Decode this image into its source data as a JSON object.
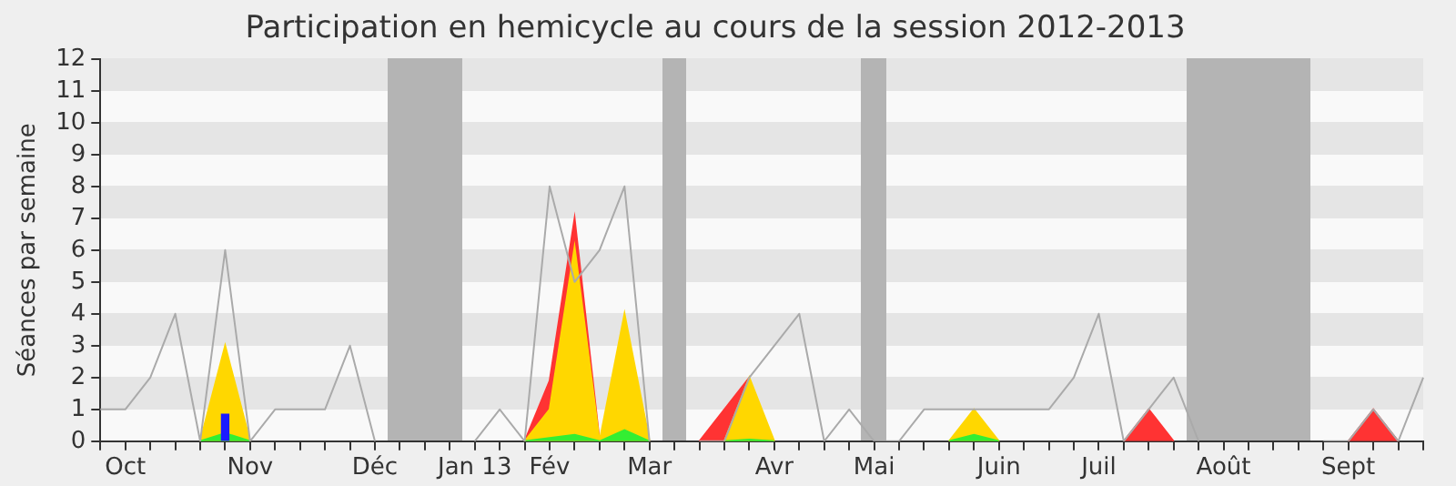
{
  "chart_data": {
    "type": "area",
    "title": "Participation en hemicycle au cours de la session 2012-2013",
    "ylabel": "Séances par semaine",
    "stacked": true,
    "categories": [
      null,
      "Oct",
      null,
      null,
      null,
      null,
      "Nov",
      null,
      null,
      null,
      null,
      "Déc",
      null,
      null,
      null,
      "Jan 13",
      null,
      null,
      "Fév",
      null,
      null,
      null,
      "Mar",
      null,
      null,
      null,
      null,
      "Avr",
      null,
      null,
      null,
      "Mai",
      null,
      null,
      null,
      null,
      "Juin",
      null,
      null,
      null,
      "Juil",
      null,
      null,
      null,
      null,
      "Août",
      null,
      null,
      null,
      null,
      "Sept",
      null,
      null,
      null
    ],
    "series": [
      {
        "color": "#33ee33",
        "values": [
          null,
          null,
          null,
          null,
          0,
          0.25,
          0,
          null,
          null,
          null,
          null,
          null,
          null,
          null,
          null,
          null,
          null,
          0,
          0.1,
          0.2,
          0,
          0.35,
          0,
          null,
          null,
          0,
          0.05,
          0,
          null,
          null,
          null,
          null,
          null,
          null,
          0,
          0.2,
          0,
          null,
          null,
          null,
          null,
          null,
          null,
          null,
          null,
          null,
          null,
          null,
          null,
          null,
          null,
          null,
          null,
          null
        ]
      },
      {
        "color": "#ffd700",
        "values": [
          null,
          null,
          null,
          null,
          0,
          2.75,
          0,
          null,
          null,
          null,
          null,
          null,
          null,
          null,
          null,
          null,
          null,
          0,
          0.9,
          5.9,
          0,
          3.65,
          0,
          null,
          null,
          0,
          1.95,
          0,
          null,
          null,
          null,
          null,
          null,
          null,
          0,
          0.8,
          0,
          null,
          null,
          null,
          null,
          null,
          null,
          null,
          null,
          null,
          null,
          null,
          null,
          null,
          null,
          null,
          null,
          null
        ]
      },
      {
        "color": "#ff3333",
        "values": [
          null,
          null,
          null,
          null,
          null,
          null,
          null,
          null,
          null,
          null,
          null,
          null,
          null,
          null,
          null,
          null,
          null,
          0,
          0.9,
          0.9,
          0,
          null,
          null,
          null,
          0,
          1,
          0,
          null,
          null,
          null,
          null,
          null,
          null,
          null,
          null,
          null,
          null,
          null,
          null,
          null,
          null,
          0,
          1,
          0,
          null,
          null,
          null,
          null,
          null,
          null,
          0,
          1,
          0,
          null
        ]
      },
      {
        "type": "line",
        "color": "#aaaaaa",
        "values": [
          1,
          1,
          2,
          4,
          0,
          6,
          0,
          1,
          1,
          1,
          3,
          0,
          null,
          null,
          null,
          0,
          1,
          0,
          8,
          5,
          6,
          8,
          0,
          null,
          0,
          0,
          2,
          3,
          4,
          0,
          1,
          0,
          0,
          1,
          1,
          1,
          1,
          1,
          1,
          2,
          4,
          0,
          1,
          2,
          0,
          null,
          null,
          null,
          null,
          0,
          0,
          1,
          0,
          2
        ]
      },
      {
        "type": "bar",
        "color": "#1a1aff",
        "values": [
          null,
          null,
          null,
          null,
          null,
          0.85,
          null,
          null,
          null,
          null,
          null,
          null,
          null,
          null,
          null,
          null,
          null,
          null,
          null,
          null,
          null,
          null,
          null,
          null,
          null,
          null,
          null,
          null,
          null,
          null,
          null,
          null,
          null,
          null,
          null,
          null,
          null,
          null,
          null,
          null,
          null,
          null,
          null,
          null,
          null,
          null,
          null,
          null,
          null,
          null,
          null,
          null,
          null,
          null
        ]
      }
    ],
    "ylim": [
      0,
      12
    ],
    "yticks": [
      0,
      1,
      2,
      3,
      4,
      5,
      6,
      7,
      8,
      9,
      10,
      11,
      12
    ]
  }
}
